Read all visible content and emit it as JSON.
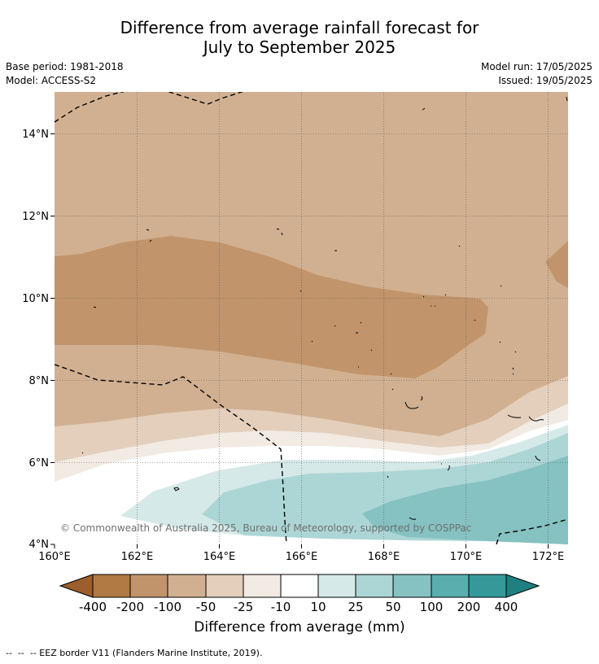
{
  "title_line1": "Difference from average rainfall forecast for",
  "title_line2": "July to September 2025",
  "meta": {
    "base_period": "Base period: 1981-2018",
    "model": "Model: ACCESS-S2",
    "model_run": "Model run: 17/05/2025",
    "issued": "Issued: 19/05/2025"
  },
  "map": {
    "lon_ticks": [
      "160°E",
      "162°E",
      "164°E",
      "166°E",
      "168°E",
      "170°E",
      "172°E"
    ],
    "lat_ticks": [
      "14°N",
      "12°N",
      "10°N",
      "8°N",
      "6°N",
      "4°N"
    ],
    "lon_range": [
      160,
      172.5
    ],
    "lat_range": [
      3.9,
      14.95
    ],
    "copyright": "© Commonwealth of Australia 2025, Bureau of Meteorology, supported by COSPPac"
  },
  "colorbar": {
    "label": "Difference from average (mm)",
    "ticks": [
      "-400",
      "-200",
      "-100",
      "-50",
      "-25",
      "-10",
      "10",
      "25",
      "50",
      "100",
      "200",
      "400"
    ],
    "colors": {
      "lt_-400": "#9b5e2c",
      "-400_-200": "#b07a45",
      "-200_-100": "#c1946b",
      "-100_-50": "#d1b091",
      "-50_-25": "#e3cfbc",
      "-25_-10": "#f2ebe3",
      "-10_10": "#ffffff",
      "10_25": "#d5e9e8",
      "25_50": "#acd6d5",
      "50_100": "#85c2c1",
      "100_200": "#5aaeae",
      "200_400": "#35999a",
      "gt_400": "#207f80"
    }
  },
  "footnote": "--  --  -- EEZ border V11 (Flanders Marine Institute, 2019)."
}
